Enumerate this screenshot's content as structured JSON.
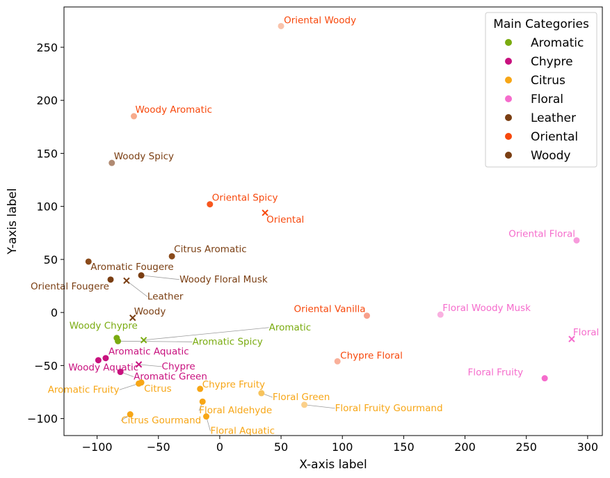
{
  "chart_data": {
    "type": "scatter",
    "xlabel": "X-axis label",
    "ylabel": "Y-axis label",
    "xlim": [
      -127,
      312
    ],
    "ylim": [
      -116,
      288
    ],
    "x_ticks": [
      -100,
      -50,
      0,
      50,
      100,
      150,
      200,
      250,
      300
    ],
    "y_ticks": [
      -100,
      -50,
      0,
      50,
      100,
      150,
      200,
      250
    ],
    "grid": false,
    "legend": {
      "title": "Main Categories",
      "position": "top-right",
      "entries": [
        {
          "name": "Aromatic",
          "color": "#7aab10"
        },
        {
          "name": "Chypre",
          "color": "#c8117e"
        },
        {
          "name": "Citrus",
          "color": "#f7a616"
        },
        {
          "name": "Floral",
          "color": "#f56ccc"
        },
        {
          "name": "Leather",
          "color": "#7a3e12"
        },
        {
          "name": "Oriental",
          "color": "#f7480c"
        },
        {
          "name": "Woody",
          "color": "#7a3e12"
        }
      ]
    },
    "points": [
      {
        "label": "Oriental Woody",
        "x": 50,
        "y": 270,
        "color": "#f9c3ab",
        "text_color": "#f7480c",
        "marker": "circle",
        "label_dx": 4,
        "label_dy": -4,
        "anchor": "start"
      },
      {
        "label": "Woody Aromatic",
        "x": -70,
        "y": 185,
        "color": "#f7ab8c",
        "text_color": "#f7480c",
        "marker": "circle",
        "label_dx": 2,
        "label_dy": -5,
        "anchor": "start"
      },
      {
        "label": "Woody Spicy",
        "x": -88,
        "y": 141,
        "color": "#b08a72",
        "text_color": "#7a3e12",
        "marker": "circle",
        "label_dx": 3,
        "label_dy": -5,
        "anchor": "start"
      },
      {
        "label": "Oriental Spicy",
        "x": -8,
        "y": 102,
        "color": "#f7571e",
        "text_color": "#f7480c",
        "marker": "circle",
        "label_dx": 3,
        "label_dy": -5,
        "anchor": "start"
      },
      {
        "label": "Oriental",
        "x": 37,
        "y": 94,
        "color": "#f7480c",
        "text_color": "#f7480c",
        "marker": "x",
        "label_dx": 2,
        "label_dy": 14,
        "anchor": "start"
      },
      {
        "label": "Citrus Aromatic",
        "x": -39,
        "y": 53,
        "color": "#8a4a1a",
        "text_color": "#7a3e12",
        "marker": "circle",
        "label_dx": 3,
        "label_dy": -6,
        "anchor": "start"
      },
      {
        "label": "Aromatic Fougere",
        "x": -107,
        "y": 48,
        "color": "#8a4a1a",
        "text_color": "#7a3e12",
        "marker": "circle",
        "label_dx": 3,
        "label_dy": 12,
        "anchor": "start"
      },
      {
        "label": "Woody Floral Musk",
        "x": -64,
        "y": 35,
        "color": "#7a3e12",
        "text_color": "#7a3e12",
        "marker": "circle",
        "label_dx": 55,
        "label_dy": 10,
        "anchor": "start",
        "leader": true
      },
      {
        "label": "Oriental Fougere",
        "x": -89,
        "y": 31,
        "color": "#7a3e12",
        "text_color": "#7a3e12",
        "marker": "circle",
        "label_dx": -2,
        "label_dy": 14,
        "anchor": "end"
      },
      {
        "label": "Leather",
        "x": -76,
        "y": 30,
        "color": "#7a3e12",
        "text_color": "#7a3e12",
        "marker": "x",
        "label_dx": 30,
        "label_dy": 27,
        "anchor": "start",
        "leader": true
      },
      {
        "label": "Woody",
        "x": -71,
        "y": -5,
        "color": "#7a3e12",
        "text_color": "#7a3e12",
        "marker": "x",
        "label_dx": 2,
        "label_dy": -5,
        "anchor": "start"
      },
      {
        "label": "Woody Chypre",
        "x": -84,
        "y": -24,
        "color": "#7aab10",
        "text_color": "#7aab10",
        "marker": "circle",
        "label_dx": 30,
        "label_dy": -13,
        "anchor": "end"
      },
      {
        "label": "Aromatic",
        "x": -62,
        "y": -26,
        "color": "#7aab10",
        "text_color": "#7aab10",
        "marker": "x",
        "label_dx": 180,
        "label_dy": -14,
        "anchor": "start",
        "leader": true
      },
      {
        "label": "Aromatic Spicy",
        "x": -83,
        "y": -27,
        "color": "#7aab10",
        "text_color": "#7aab10",
        "marker": "circle",
        "label_dx": 107,
        "label_dy": 5,
        "anchor": "start",
        "leader": true
      },
      {
        "label": "Aromatic Aquatic",
        "x": -93,
        "y": -43,
        "color": "#c8117e",
        "text_color": "#c8117e",
        "marker": "circle",
        "label_dx": 4,
        "label_dy": -5,
        "anchor": "start"
      },
      {
        "label": "Woody Aquatic",
        "x": -99,
        "y": -45,
        "color": "#c8117e",
        "text_color": "#c8117e",
        "marker": "circle",
        "label_dx": -43,
        "label_dy": 15,
        "anchor": "start"
      },
      {
        "label": "Chypre",
        "x": -66,
        "y": -49,
        "color": "#c8117e",
        "text_color": "#c8117e",
        "marker": "x",
        "label_dx": 33,
        "label_dy": 7,
        "anchor": "start",
        "leader": true
      },
      {
        "label": "Aromatic Green",
        "x": -81,
        "y": -56,
        "color": "#c8117e",
        "text_color": "#c8117e",
        "marker": "circle",
        "label_dx": 19,
        "label_dy": 11,
        "anchor": "start",
        "leader": true
      },
      {
        "label": "Citrus",
        "x": -64,
        "y": -66,
        "color": "#f7a616",
        "text_color": "#f7a616",
        "marker": "circle",
        "label_dx": 4,
        "label_dy": 13,
        "anchor": "start"
      },
      {
        "label": "Aromatic Fruity",
        "x": -66,
        "y": -67,
        "color": "#f7a616",
        "text_color": "#f7a616",
        "marker": "circle",
        "label_dx": -28,
        "label_dy": 13,
        "anchor": "end",
        "leader": true
      },
      {
        "label": "Chypre Fruity",
        "x": -16,
        "y": -72,
        "color": "#f7a616",
        "text_color": "#f7a616",
        "marker": "circle",
        "label_dx": 3,
        "label_dy": -2,
        "anchor": "start"
      },
      {
        "label": "Floral Green",
        "x": 34,
        "y": -76,
        "color": "#f7c35c",
        "text_color": "#f7a616",
        "marker": "circle",
        "label_dx": 16,
        "label_dy": 10,
        "anchor": "start",
        "leader": true
      },
      {
        "label": "Floral Aldehyde",
        "x": -14,
        "y": -84,
        "color": "#f7a616",
        "text_color": "#f7a616",
        "marker": "circle",
        "label_dx": -5,
        "label_dy": 17,
        "anchor": "start",
        "leader": true
      },
      {
        "label": "Floral Fruity Gourmand",
        "x": 69,
        "y": -87,
        "color": "#fbd08a",
        "text_color": "#f7a616",
        "marker": "circle",
        "label_dx": 44,
        "label_dy": 9,
        "anchor": "start",
        "leader": true
      },
      {
        "label": "Citrus Gourmand",
        "x": -73,
        "y": -96,
        "color": "#f7a616",
        "text_color": "#f7a616",
        "marker": "circle",
        "label_dx": -13,
        "label_dy": 13,
        "anchor": "start",
        "leader": true
      },
      {
        "label": "Floral Aquatic",
        "x": -11,
        "y": -98,
        "color": "#f7a616",
        "text_color": "#f7a616",
        "marker": "circle",
        "label_dx": 6,
        "label_dy": 25,
        "anchor": "start",
        "leader": true
      },
      {
        "label": "Chypre Floral",
        "x": 96,
        "y": -46,
        "color": "#f9b09a",
        "text_color": "#f7480c",
        "marker": "circle",
        "label_dx": 4,
        "label_dy": -4,
        "anchor": "start"
      },
      {
        "label": "Oriental Vanilla",
        "x": 120,
        "y": -3,
        "color": "#f7a08c",
        "text_color": "#f7480c",
        "marker": "circle",
        "label_dx": -2,
        "label_dy": -5,
        "anchor": "end"
      },
      {
        "label": "Floral Woody Musk",
        "x": 180,
        "y": -2,
        "color": "#f9b0e0",
        "text_color": "#f56ccc",
        "marker": "circle",
        "label_dx": 3,
        "label_dy": -5,
        "anchor": "start"
      },
      {
        "label": "Oriental Floral",
        "x": 291,
        "y": 68,
        "color": "#f79bdc",
        "text_color": "#f56ccc",
        "marker": "circle",
        "label_dx": -2,
        "label_dy": -5,
        "anchor": "end"
      },
      {
        "label": "Floral",
        "x": 287,
        "y": -25,
        "color": "#f56ccc",
        "text_color": "#f56ccc",
        "marker": "x",
        "label_dx": 2,
        "label_dy": -5,
        "anchor": "start"
      },
      {
        "label": "Floral Fruity",
        "x": 265,
        "y": -62,
        "color": "#f56ccc",
        "text_color": "#f56ccc",
        "marker": "circle",
        "label_dx": -31,
        "label_dy": -4,
        "anchor": "end"
      }
    ]
  }
}
